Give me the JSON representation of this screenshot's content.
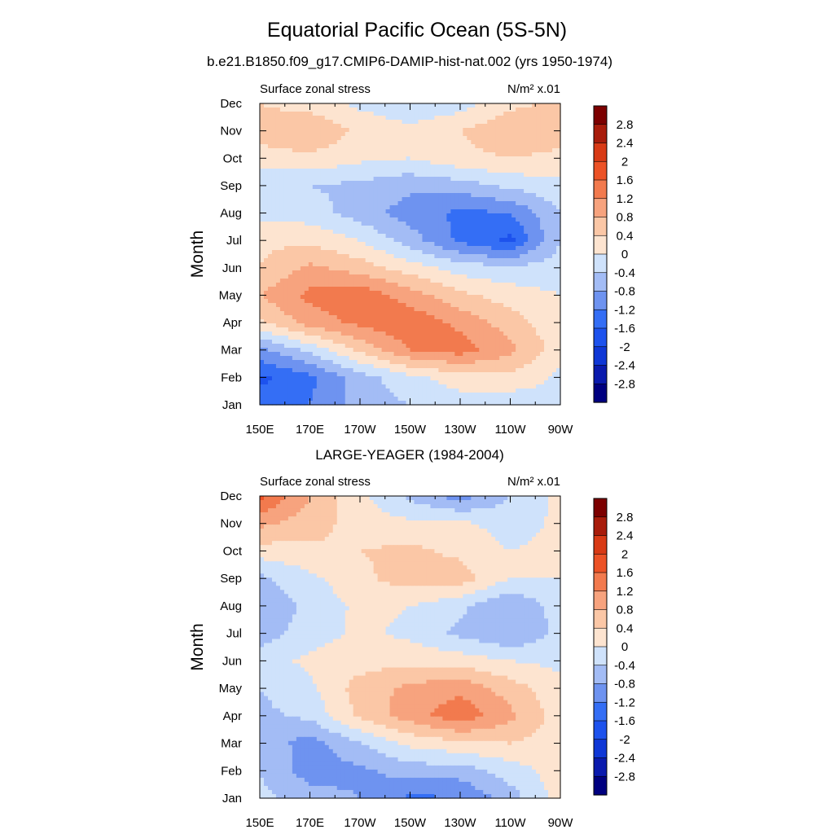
{
  "figure": {
    "title": "Equatorial Pacific Ocean (5S-5N)",
    "subtitle": "b.e21.B1850.f09_g17.CMIP6-DAMIP-hist-nat.002 (yrs 1950-1974)"
  },
  "chart_data": [
    {
      "type": "heatmap",
      "title": "",
      "left_label": "Surface zonal stress",
      "right_label": "N/m² x.01",
      "ylabel": "Month",
      "xlabel": "",
      "x": [
        "150E",
        "170E",
        "170W",
        "150W",
        "130W",
        "110W",
        "90W"
      ],
      "x_longitude_degE": [
        150,
        170,
        190,
        210,
        230,
        250,
        270
      ],
      "y": [
        "Jan",
        "Feb",
        "Mar",
        "Apr",
        "May",
        "Jun",
        "Jul",
        "Aug",
        "Sep",
        "Oct",
        "Nov",
        "Dec"
      ],
      "values": [
        [
          -1.4,
          -1.2,
          -0.6,
          -0.4,
          -0.2,
          -0.3,
          -0.1
        ],
        [
          -1.7,
          -1.3,
          -0.6,
          -0.1,
          0.2,
          0.3,
          -0.1
        ],
        [
          -0.9,
          -0.3,
          0.5,
          1.2,
          1.4,
          0.9,
          0.2
        ],
        [
          0.3,
          1.0,
          1.3,
          1.5,
          1.1,
          0.6,
          0.1
        ],
        [
          0.8,
          1.3,
          1.5,
          1.0,
          0.5,
          0.2,
          0.0
        ],
        [
          0.4,
          0.9,
          0.6,
          0.2,
          -0.2,
          -0.3,
          -0.2
        ],
        [
          0.3,
          0.3,
          0.0,
          -0.6,
          -1.3,
          -1.7,
          -0.4
        ],
        [
          -0.1,
          -0.2,
          -0.6,
          -1.0,
          -1.3,
          -1.2,
          -0.4
        ],
        [
          -0.3,
          -0.4,
          -0.5,
          -0.7,
          -0.6,
          -0.3,
          -0.1
        ],
        [
          0.2,
          0.3,
          0.1,
          0.0,
          0.3,
          0.4,
          0.3
        ],
        [
          0.6,
          0.8,
          0.3,
          0.1,
          0.4,
          0.7,
          0.6
        ],
        [
          0.4,
          0.2,
          -0.1,
          -0.3,
          -0.2,
          0.3,
          0.5
        ]
      ],
      "colorbar_labels": [
        "2.8",
        "2.4",
        "2",
        "1.6",
        "1.2",
        "0.8",
        "0.4",
        "0",
        "-0.4",
        "-0.8",
        "-1.2",
        "-1.6",
        "-2",
        "-2.4",
        "-2.8"
      ]
    },
    {
      "type": "heatmap",
      "title": "LARGE-YEAGER (1984-2004)",
      "left_label": "Surface zonal stress",
      "right_label": "N/m² x.01",
      "ylabel": "Month",
      "xlabel": "",
      "x": [
        "150E",
        "170E",
        "170W",
        "150W",
        "130W",
        "110W",
        "90W"
      ],
      "x_longitude_degE": [
        150,
        170,
        190,
        210,
        230,
        250,
        270
      ],
      "y": [
        "Jan",
        "Feb",
        "Mar",
        "Apr",
        "May",
        "Jun",
        "Jul",
        "Aug",
        "Sep",
        "Oct",
        "Nov",
        "Dec"
      ],
      "values": [
        [
          -0.3,
          -0.6,
          -0.8,
          -1.3,
          -1.2,
          -0.6,
          0.2
        ],
        [
          -0.4,
          -1.0,
          -0.9,
          -0.6,
          -0.6,
          -0.2,
          0.2
        ],
        [
          -0.5,
          -1.0,
          -0.4,
          0.1,
          0.3,
          0.4,
          0.2
        ],
        [
          -0.5,
          -0.3,
          0.5,
          1.0,
          1.5,
          0.9,
          0.2
        ],
        [
          -0.4,
          -0.1,
          0.6,
          0.9,
          1.1,
          0.6,
          0.1
        ],
        [
          -0.2,
          0.1,
          0.2,
          0.3,
          0.2,
          0.0,
          -0.1
        ],
        [
          -0.6,
          -0.2,
          0.1,
          -0.1,
          -0.5,
          -0.8,
          -0.3
        ],
        [
          -0.7,
          -0.3,
          0.1,
          0.0,
          -0.3,
          -0.8,
          -0.2
        ],
        [
          -0.5,
          -0.1,
          0.3,
          0.6,
          0.6,
          0.0,
          0.0
        ],
        [
          0.2,
          0.3,
          0.4,
          0.5,
          0.3,
          0.0,
          0.1
        ],
        [
          0.9,
          0.6,
          0.2,
          0.1,
          0.1,
          -0.2,
          0.1
        ],
        [
          1.7,
          0.8,
          0.1,
          -0.5,
          -1.0,
          -0.4,
          0.1
        ]
      ],
      "colorbar_labels": [
        "2.8",
        "2.4",
        "2",
        "1.6",
        "1.2",
        "0.8",
        "0.4",
        "0",
        "-0.4",
        "-0.8",
        "-1.2",
        "-1.6",
        "-2",
        "-2.4",
        "-2.8"
      ]
    }
  ],
  "colorscale": {
    "levels": [
      -2.8,
      -2.4,
      -2.0,
      -1.6,
      -1.2,
      -0.8,
      -0.4,
      0.0,
      0.4,
      0.8,
      1.2,
      1.6,
      2.0,
      2.4,
      2.8
    ],
    "colors": [
      "#000080",
      "#0a1aad",
      "#0f37d6",
      "#1d52ed",
      "#346ef5",
      "#6e93f0",
      "#a3bcf5",
      "#cfe2fb",
      "#fde4d0",
      "#fbc7a6",
      "#f7a37e",
      "#f27a4e",
      "#ec5226",
      "#d83a15",
      "#a81c0b",
      "#7c0000"
    ]
  }
}
